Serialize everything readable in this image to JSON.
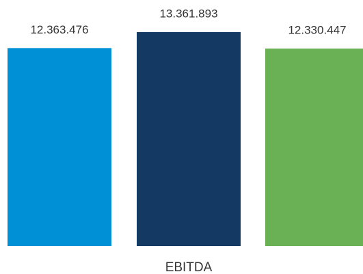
{
  "chart_data": {
    "type": "bar",
    "categories": [
      "EBITDA"
    ],
    "series": [
      {
        "color": "#0090d5",
        "values": [
          12363476
        ],
        "value_labels": [
          "12.363.476"
        ]
      },
      {
        "color": "#143a63",
        "values": [
          13361893
        ],
        "value_labels": [
          "13.361.893"
        ]
      },
      {
        "color": "#6ab155",
        "values": [
          12330447
        ],
        "value_labels": [
          "12.330.447"
        ]
      }
    ],
    "ylim": [
      0,
      14000000
    ]
  }
}
